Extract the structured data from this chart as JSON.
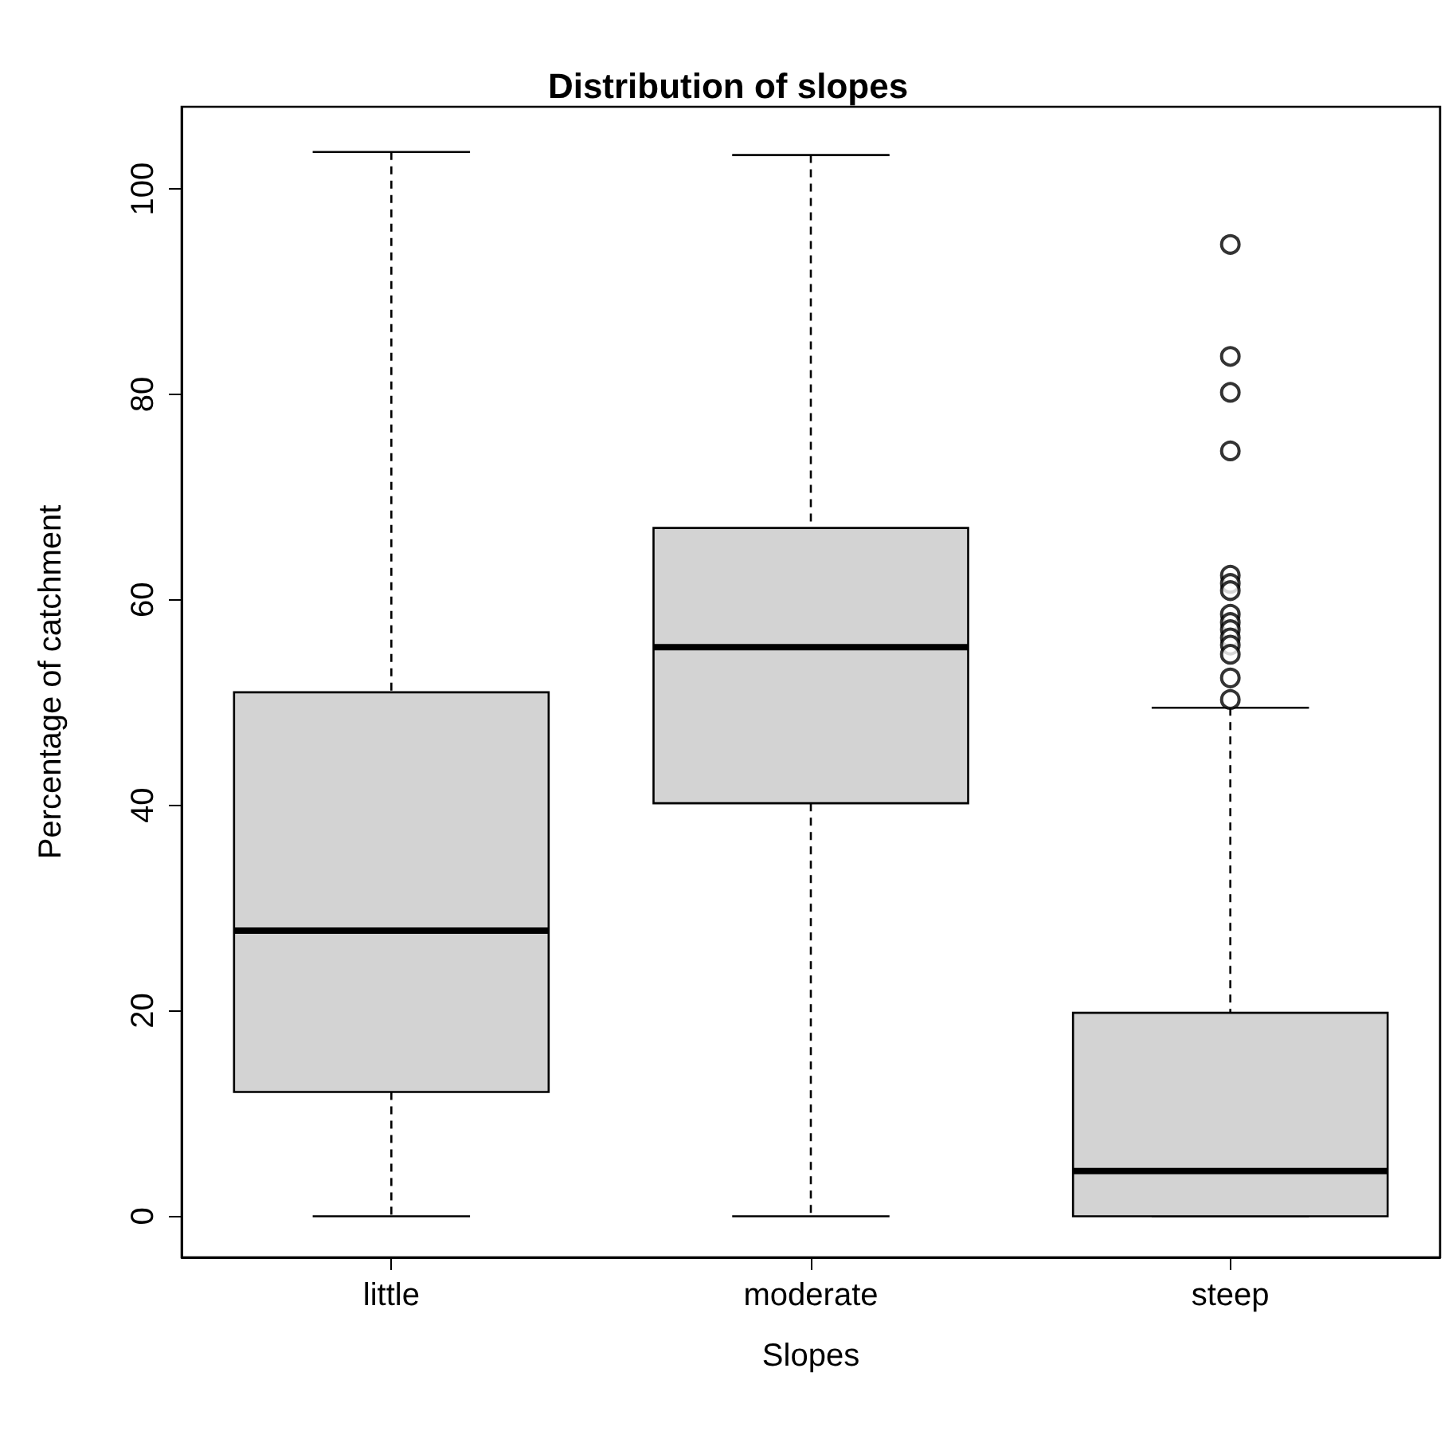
{
  "chart_data": {
    "type": "box",
    "title": "Distribution of slopes",
    "xlabel": "Slopes",
    "ylabel": "Percentage of catchment",
    "categories": [
      "little",
      "moderate",
      "steep"
    ],
    "color": "#d3d3d3",
    "boxes": [
      {
        "low": 0,
        "q1": 12.1,
        "median": 27.8,
        "q3": 51.0,
        "high": 103.6
      },
      {
        "low": 0,
        "q1": 40.2,
        "median": 55.4,
        "q3": 67.0,
        "high": 103.3
      },
      {
        "low": 0,
        "q1": 0,
        "median": 4.4,
        "q3": 19.8,
        "high": 49.5,
        "outliers": [
          94.6,
          83.7,
          80.2,
          74.5,
          62.4,
          61.6,
          60.9,
          58.6,
          57.8,
          57.1,
          56.3,
          55.6,
          54.7,
          52.4,
          50.3
        ]
      }
    ],
    "ylim": [
      -4,
      108
    ],
    "yticks": [
      0,
      20,
      40,
      60,
      80,
      100
    ],
    "grid": false,
    "marker": "circle"
  }
}
